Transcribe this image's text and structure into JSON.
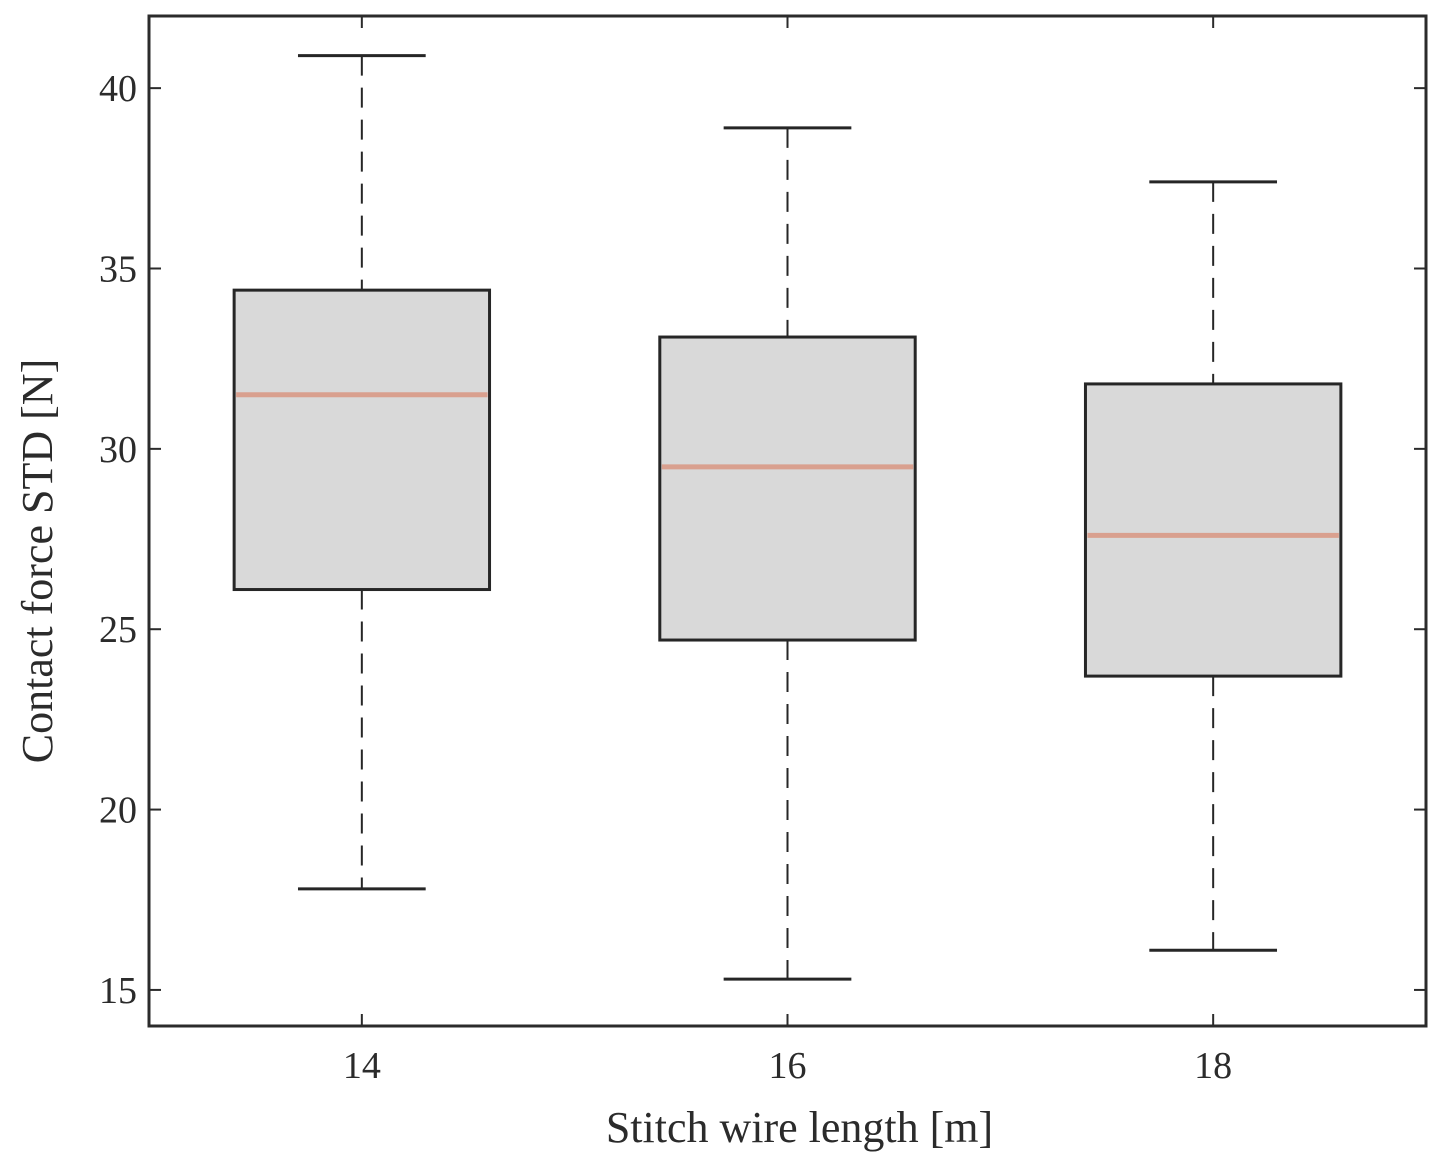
{
  "chart_data": {
    "type": "box",
    "xlabel": "Stitch wire length  [m]",
    "ylabel": "Contact force STD  [N]",
    "categories": [
      "14",
      "16",
      "18"
    ],
    "x": [
      14,
      16,
      18
    ],
    "xlim": [
      13,
      19
    ],
    "ylim": [
      14,
      42
    ],
    "yticks": [
      15,
      20,
      25,
      30,
      35,
      40
    ],
    "boxes": [
      {
        "category": "14",
        "min": 17.8,
        "q1": 26.1,
        "median": 31.5,
        "q3": 34.4,
        "max": 40.9
      },
      {
        "category": "16",
        "min": 15.3,
        "q1": 24.7,
        "median": 29.5,
        "q3": 33.1,
        "max": 38.9
      },
      {
        "category": "18",
        "min": 16.1,
        "q1": 23.7,
        "median": 27.6,
        "q3": 31.8,
        "max": 37.4
      }
    ],
    "colors": {
      "box_fill": "#d9d9d9",
      "box_edge": "#262626",
      "median": "#d9a08f",
      "axis": "#2b2b2b"
    },
    "grid": false,
    "legend": "none"
  }
}
